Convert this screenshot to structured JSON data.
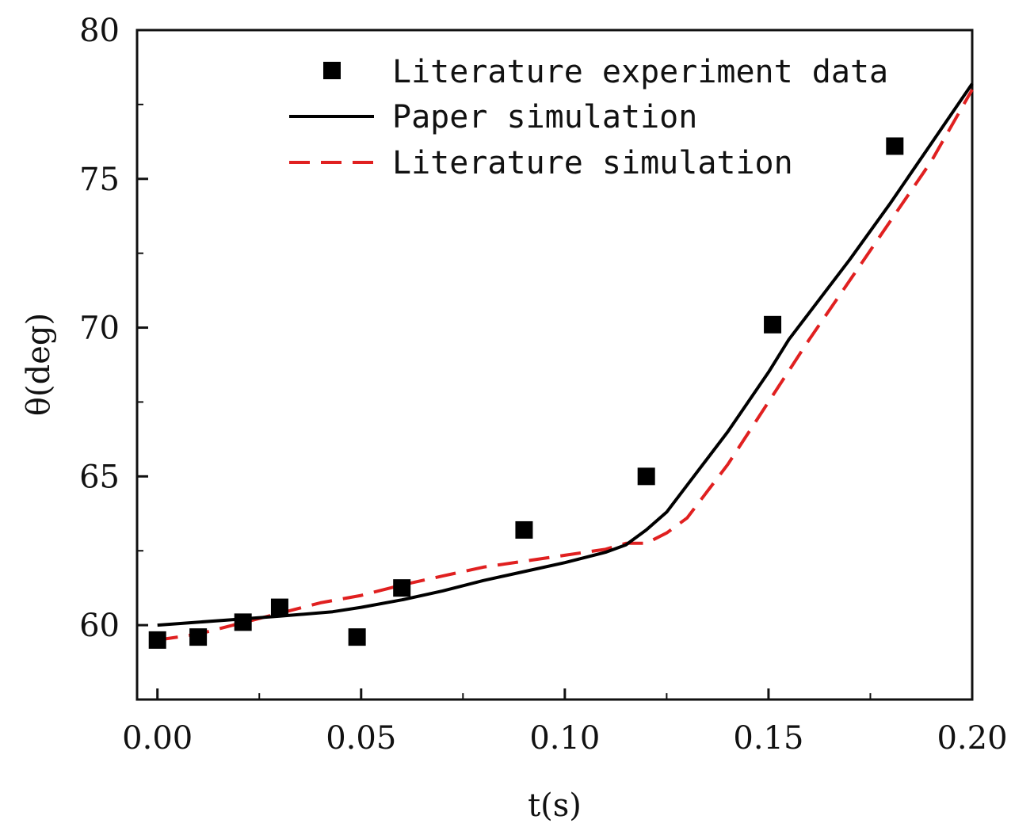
{
  "chart_data": {
    "type": "line",
    "xlabel": "t(s)",
    "ylabel": "θ(deg)",
    "xlim": [
      -0.005,
      0.2
    ],
    "ylim": [
      57.5,
      80
    ],
    "x_ticks": [
      "0.00",
      "0.05",
      "0.10",
      "0.15",
      "0.20"
    ],
    "x_tick_values": [
      0.0,
      0.05,
      0.1,
      0.15,
      0.2
    ],
    "y_ticks": [
      "60",
      "65",
      "70",
      "75",
      "80"
    ],
    "y_tick_values": [
      60,
      65,
      70,
      75,
      80
    ],
    "legend_position": "top-right",
    "series": [
      {
        "name": "Literature experiment data",
        "style": "scatter",
        "marker": "square",
        "color": "#000000",
        "x": [
          0.0,
          0.01,
          0.021,
          0.03,
          0.049,
          0.06,
          0.09,
          0.12,
          0.151,
          0.181
        ],
        "y": [
          59.5,
          59.6,
          60.1,
          60.6,
          59.6,
          61.25,
          63.2,
          65.0,
          70.1,
          76.1
        ]
      },
      {
        "name": "Paper simulation",
        "style": "solid",
        "color": "#000000",
        "x": [
          0.0,
          0.02,
          0.03,
          0.043,
          0.05,
          0.06,
          0.07,
          0.08,
          0.09,
          0.1,
          0.11,
          0.115,
          0.12,
          0.125,
          0.13,
          0.14,
          0.15,
          0.155,
          0.16,
          0.17,
          0.18,
          0.19,
          0.2
        ],
        "y": [
          60.0,
          60.2,
          60.3,
          60.45,
          60.6,
          60.85,
          61.15,
          61.5,
          61.8,
          62.1,
          62.45,
          62.7,
          63.2,
          63.8,
          64.7,
          66.5,
          68.5,
          69.6,
          70.5,
          72.3,
          74.2,
          76.2,
          78.2
        ]
      },
      {
        "name": "Literature simulation",
        "style": "dashed",
        "color": "#e02020",
        "x": [
          0.0,
          0.01,
          0.02,
          0.03,
          0.04,
          0.05,
          0.06,
          0.07,
          0.08,
          0.09,
          0.1,
          0.11,
          0.115,
          0.12,
          0.125,
          0.13,
          0.135,
          0.14,
          0.15,
          0.16,
          0.17,
          0.18,
          0.19,
          0.2
        ],
        "y": [
          59.5,
          59.7,
          60.05,
          60.4,
          60.75,
          61.0,
          61.35,
          61.65,
          61.95,
          62.15,
          62.35,
          62.55,
          62.75,
          62.75,
          63.1,
          63.6,
          64.5,
          65.4,
          67.5,
          69.6,
          71.6,
          73.6,
          75.6,
          78.0
        ]
      }
    ]
  }
}
